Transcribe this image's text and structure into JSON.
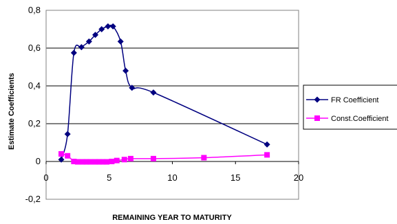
{
  "chart_data": {
    "type": "scatter",
    "xlabel": "REMAINING YEAR TO MATURITY",
    "ylabel": "Estimate Coefficients",
    "xlim": [
      0,
      20
    ],
    "ylim": [
      -0.2,
      0.8
    ],
    "x_ticks": [
      "0",
      "5",
      "10",
      "15",
      "20"
    ],
    "y_ticks": [
      "0,8",
      "0,6",
      "0,4",
      "0,2",
      "0",
      "-0,2"
    ],
    "grid": "horizontal",
    "legend_position": "right",
    "series": [
      {
        "name": "FR Coefficient",
        "color": "#000080",
        "marker": "diamond",
        "line": "smooth",
        "x": [
          1.2,
          1.7,
          2.2,
          2.8,
          3.4,
          3.9,
          4.4,
          4.9,
          5.3,
          5.9,
          6.3,
          6.8,
          8.5,
          17.5
        ],
        "y": [
          0.01,
          0.145,
          0.575,
          0.605,
          0.635,
          0.67,
          0.7,
          0.715,
          0.715,
          0.635,
          0.48,
          0.39,
          0.365,
          0.09
        ]
      },
      {
        "name": "Const.Coefficient",
        "color": "#ff00ff",
        "marker": "square",
        "line": "smooth",
        "x": [
          1.2,
          1.7,
          2.2,
          2.5,
          2.9,
          3.2,
          3.5,
          3.9,
          4.2,
          4.5,
          4.8,
          5.2,
          5.6,
          6.2,
          6.7,
          8.5,
          12.5,
          17.5
        ],
        "y": [
          0.04,
          0.03,
          0.0,
          -0.002,
          -0.002,
          -0.002,
          -0.002,
          -0.002,
          -0.002,
          -0.002,
          -0.002,
          0.0,
          0.005,
          0.01,
          0.015,
          0.015,
          0.02,
          0.035
        ]
      }
    ]
  }
}
